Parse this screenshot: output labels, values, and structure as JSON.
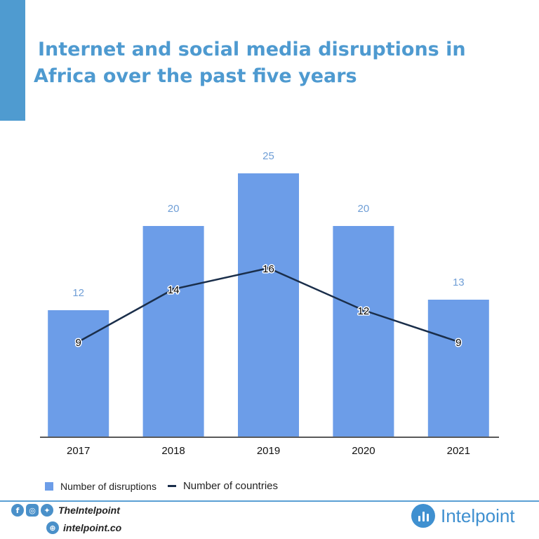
{
  "header": {
    "title_line1": "Internet and social media disruptions in",
    "title_line2": "Africa over the past five years"
  },
  "colors": {
    "accent": "#4f9bd0",
    "bar": "#6c9de8",
    "line": "#1a2e4a",
    "value_label": "#6f9ed6"
  },
  "chart_data": {
    "type": "bar",
    "title": "Internet and social media disruptions in Africa over the past five years",
    "categories": [
      "2017",
      "2018",
      "2019",
      "2020",
      "2021"
    ],
    "series": [
      {
        "name": "Number of disruptions",
        "type": "bar",
        "values": [
          12,
          20,
          25,
          20,
          13
        ]
      },
      {
        "name": "Number of countries",
        "type": "line",
        "values": [
          9,
          14,
          16,
          12,
          9
        ]
      }
    ],
    "ylim": [
      0,
      25
    ],
    "grid": false,
    "legend_position": "bottom-left"
  },
  "legend": {
    "bar_label": "Number of disruptions",
    "line_label": "Number of countries"
  },
  "footer": {
    "social_icons": [
      "facebook-icon",
      "instagram-icon",
      "twitter-icon"
    ],
    "handle": "TheIntelpoint",
    "website": "intelpoint.co",
    "brand": "Intelpoint"
  }
}
